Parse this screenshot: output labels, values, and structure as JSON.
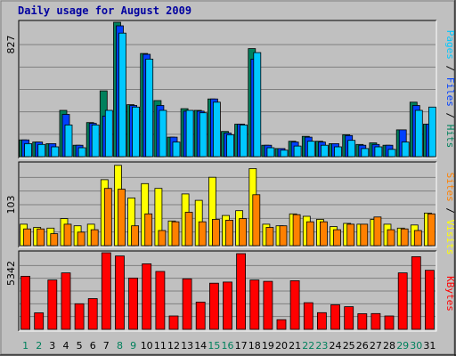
{
  "chart_data": {
    "type": "bar",
    "title": "Daily usage for August 2009",
    "categories": [
      "1",
      "2",
      "3",
      "4",
      "5",
      "6",
      "7",
      "8",
      "9",
      "10",
      "11",
      "12",
      "13",
      "14",
      "15",
      "16",
      "17",
      "18",
      "19",
      "20",
      "21",
      "22",
      "23",
      "24",
      "25",
      "26",
      "27",
      "28",
      "29",
      "30",
      "31"
    ],
    "weekend_days": [
      "1",
      "2",
      "8",
      "9",
      "15",
      "16",
      "22",
      "23",
      "29",
      "30"
    ],
    "colors": {
      "hits": "#00805c",
      "files": "#0040ff",
      "pages": "#00c8ff",
      "visits": "#ffff00",
      "sites": "#ff8000",
      "kbytes": "#ff0000",
      "weekday_label": "#000000",
      "weekend_label": "#00805c"
    },
    "panels": [
      {
        "id": "hits-files-pages",
        "ymax_label": "827",
        "ylim": [
          0,
          827
        ],
        "legend": [
          {
            "text": "Pages",
            "color": "#00c8ff"
          },
          {
            "text": " / ",
            "color": "#000000"
          },
          {
            "text": "Files",
            "color": "#0040ff"
          },
          {
            "text": " / ",
            "color": "#000000"
          },
          {
            "text": "Hits",
            "color": "#00805c"
          }
        ],
        "series": [
          {
            "name": "Hits",
            "color": "#00805c",
            "values": [
              103,
              90,
              80,
              285,
              70,
              210,
              405,
              827,
              320,
              635,
              345,
              120,
              295,
              285,
              355,
              155,
              200,
              665,
              70,
              50,
              95,
              125,
              95,
              80,
              135,
              75,
              85,
              70,
              165,
              335,
              200
            ]
          },
          {
            "name": "Files",
            "color": "#0040ff",
            "values": [
              103,
              90,
              80,
              260,
              70,
              205,
              250,
              805,
              315,
              630,
              315,
              120,
              280,
              280,
              355,
              145,
              200,
              600,
              70,
              50,
              90,
              120,
              90,
              80,
              130,
              70,
              75,
              70,
              165,
              315,
              200
            ]
          },
          {
            "name": "Pages",
            "color": "#00c8ff",
            "values": [
              80,
              75,
              60,
              195,
              55,
              195,
              285,
              760,
              305,
              600,
              285,
              90,
              285,
              270,
              335,
              135,
              195,
              640,
              55,
              40,
              65,
              95,
              70,
              60,
              100,
              50,
              60,
              45,
              90,
              285,
              305
            ]
          }
        ]
      },
      {
        "id": "visits-sites",
        "ymax_label": "103",
        "ylim": [
          0,
          103
        ],
        "legend": [
          {
            "text": "Sites",
            "color": "#ff8000"
          },
          {
            "text": " / ",
            "color": "#000000"
          },
          {
            "text": "Visits",
            "color": "#ffff00"
          }
        ],
        "series": [
          {
            "name": "Visits",
            "color": "#ffff00",
            "values": [
              27,
              23,
              22,
              34,
              25,
              27,
              83,
              101,
              60,
              78,
              72,
              31,
              65,
              57,
              86,
              38,
              44,
              97,
              27,
              25,
              40,
              37,
              33,
              24,
              28,
              27,
              33,
              27,
              22,
              26,
              41
            ]
          },
          {
            "name": "Sites",
            "color": "#ff8000",
            "values": [
              21,
              21,
              15,
              27,
              17,
              20,
              72,
              71,
              25,
              40,
              19,
              30,
              42,
              30,
              33,
              32,
              34,
              64,
              23,
              25,
              39,
              30,
              30,
              20,
              27,
              27,
              36,
              20,
              21,
              19,
              40
            ]
          }
        ]
      },
      {
        "id": "kbytes",
        "ymax_label": "5342",
        "ylim": [
          0,
          5342
        ],
        "legend": [
          {
            "text": "KBytes",
            "color": "#ff0000"
          }
        ],
        "series": [
          {
            "name": "KBytes",
            "color": "#ff0000",
            "values": [
              3700,
              1150,
              3440,
              3940,
              1780,
              2140,
              5340,
              5120,
              3580,
              4570,
              4040,
              930,
              3520,
              1900,
              3220,
              3300,
              5280,
              3440,
              3350,
              670,
              3390,
              1860,
              1160,
              1710,
              1580,
              1090,
              1100,
              930,
              3940,
              5070,
              4120
            ]
          }
        ]
      }
    ]
  }
}
